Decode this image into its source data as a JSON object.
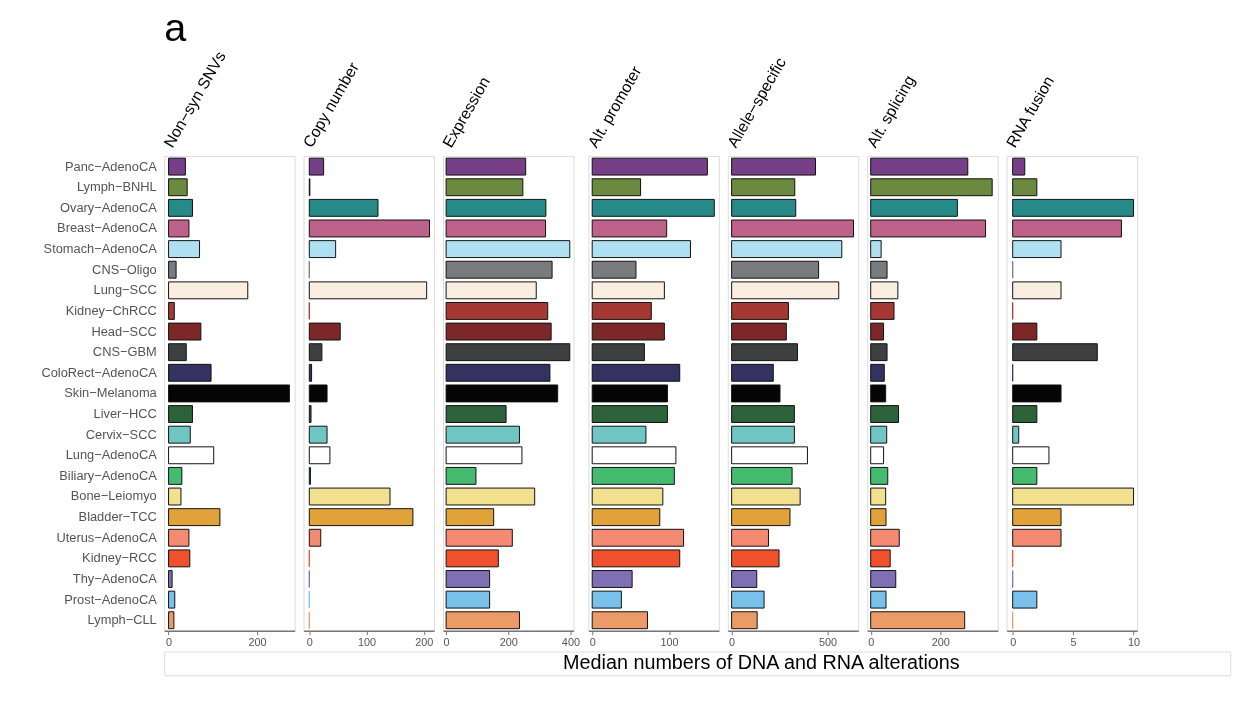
{
  "chart_data": [
    {
      "type": "bar",
      "orientation": "horizontal",
      "title": "Non−syn SNVs",
      "annotations": [
        "a"
      ],
      "categories": [
        "Panc−AdenoCA",
        "Lymph−BNHL",
        "Ovary−AdenoCA",
        "Breast−AdenoCA",
        "Stomach−AdenoCA",
        "CNS−Oligo",
        "Lung−SCC",
        "Kidney−ChRCC",
        "Head−SCC",
        "CNS−GBM",
        "ColoRect−AdenoCA",
        "Skin−Melanoma",
        "Liver−HCC",
        "Cervix−SCC",
        "Lung−AdenoCA",
        "Biliary−AdenoCA",
        "Bone−Leiomyo",
        "Bladder−TCC",
        "Uterus−AdenoCA",
        "Kidney−RCC",
        "Thy−AdenoCA",
        "Prost−AdenoCA",
        "Lymph−CLL"
      ],
      "values": [
        38,
        42,
        54,
        46,
        70,
        17,
        179,
        13,
        73,
        40,
        96,
        273,
        54,
        49,
        102,
        30,
        28,
        116,
        46,
        48,
        8,
        14,
        12
      ],
      "colors": [
        "#763f87",
        "#6b8a40",
        "#268a89",
        "#be618b",
        "#afe0f2",
        "#7a7b7f",
        "#f9eedf",
        "#a43832",
        "#7d2828",
        "#3e3f41",
        "#333261",
        "#050505",
        "#2c613a",
        "#6fc6c2",
        "#ffffff",
        "#45bb70",
        "#f1e08e",
        "#e1a23a",
        "#f58a73",
        "#ef512d",
        "#7f70b6",
        "#79c1ea",
        "#ea9b67"
      ],
      "xlim": [
        -10,
        285
      ],
      "xticks": [
        0,
        200
      ]
    },
    {
      "type": "bar",
      "orientation": "horizontal",
      "title": "Copy number",
      "tick_labels": "x",
      "categories": [
        null,
        null,
        null,
        null,
        null,
        null,
        null,
        null,
        null,
        null,
        null,
        null,
        null,
        null,
        null,
        null,
        null,
        null,
        null,
        null,
        null,
        null,
        null
      ],
      "values": [
        25,
        1,
        120,
        210,
        46,
        0,
        205,
        0,
        54,
        22,
        4,
        31,
        3,
        31,
        36,
        2,
        141,
        181,
        20,
        0,
        0,
        0,
        0
      ],
      "colors": [
        "#763f87",
        "#6b8a40",
        "#268a89",
        "#be618b",
        "#afe0f2",
        "#7a7b7f",
        "#f9eedf",
        "#a43832",
        "#7d2828",
        "#3e3f41",
        "#333261",
        "#050505",
        "#2c613a",
        "#6fc6c2",
        "#ffffff",
        "#45bb70",
        "#f1e08e",
        "#e1a23a",
        "#f58a73",
        "#ef512d",
        "#7f70b6",
        "#79c1ea",
        "#ea9b67"
      ],
      "xlim": [
        -10,
        218
      ],
      "xticks": [
        0,
        100,
        200
      ]
    },
    {
      "type": "bar",
      "orientation": "horizontal",
      "title": "Expression",
      "tick_labels": "x",
      "categories": [
        null,
        null,
        null,
        null,
        null,
        null,
        null,
        null,
        null,
        null,
        null,
        null,
        null,
        null,
        null,
        null,
        null,
        null,
        null,
        null,
        null,
        null,
        null
      ],
      "values": [
        256,
        247,
        321,
        320,
        398,
        341,
        290,
        327,
        338,
        398,
        334,
        359,
        193,
        236,
        244,
        96,
        285,
        153,
        213,
        168,
        140,
        140,
        236
      ],
      "colors": [
        "#763f87",
        "#6b8a40",
        "#268a89",
        "#be618b",
        "#afe0f2",
        "#7a7b7f",
        "#f9eedf",
        "#a43832",
        "#7d2828",
        "#3e3f41",
        "#333261",
        "#050505",
        "#2c613a",
        "#6fc6c2",
        "#ffffff",
        "#45bb70",
        "#f1e08e",
        "#e1a23a",
        "#f58a73",
        "#ef512d",
        "#7f70b6",
        "#79c1ea",
        "#ea9b67"
      ],
      "xlim": [
        -10,
        410
      ],
      "xticks": [
        0,
        200,
        400
      ]
    },
    {
      "type": "bar",
      "orientation": "horizontal",
      "title": "Alt. promoter",
      "tick_labels": "x",
      "xlabel": "Median numbers of DNA and RNA alterations",
      "categories": [
        null,
        null,
        null,
        null,
        null,
        null,
        null,
        null,
        null,
        null,
        null,
        null,
        null,
        null,
        null,
        null,
        null,
        null,
        null,
        null,
        null,
        null,
        null
      ],
      "values": [
        150,
        63,
        159,
        97,
        128,
        57,
        94,
        77,
        94,
        68,
        114,
        98,
        98,
        70,
        109,
        107,
        92,
        88,
        119,
        114,
        52,
        38,
        72
      ],
      "colors": [
        "#763f87",
        "#6b8a40",
        "#268a89",
        "#be618b",
        "#afe0f2",
        "#7a7b7f",
        "#f9eedf",
        "#a43832",
        "#7d2828",
        "#3e3f41",
        "#333261",
        "#050505",
        "#2c613a",
        "#6fc6c2",
        "#ffffff",
        "#45bb70",
        "#f1e08e",
        "#e1a23a",
        "#f58a73",
        "#ef512d",
        "#7f70b6",
        "#79c1ea",
        "#ea9b67"
      ],
      "xlim": [
        -5,
        165
      ],
      "xticks": [
        0,
        100
      ]
    },
    {
      "type": "bar",
      "orientation": "horizontal",
      "title": "Allele−specific",
      "tick_labels": "x",
      "categories": [
        null,
        null,
        null,
        null,
        null,
        null,
        null,
        null,
        null,
        null,
        null,
        null,
        null,
        null,
        null,
        null,
        null,
        null,
        null,
        null,
        null,
        null,
        null
      ],
      "values": [
        437,
        329,
        334,
        635,
        574,
        453,
        558,
        296,
        285,
        343,
        217,
        252,
        327,
        327,
        395,
        315,
        357,
        304,
        192,
        247,
        131,
        169,
        133
      ],
      "colors": [
        "#763f87",
        "#6b8a40",
        "#268a89",
        "#be618b",
        "#afe0f2",
        "#7a7b7f",
        "#f9eedf",
        "#a43832",
        "#7d2828",
        "#3e3f41",
        "#333261",
        "#050505",
        "#2c613a",
        "#6fc6c2",
        "#ffffff",
        "#45bb70",
        "#f1e08e",
        "#e1a23a",
        "#f58a73",
        "#ef512d",
        "#7f70b6",
        "#79c1ea",
        "#ea9b67"
      ],
      "xlim": [
        -20,
        660
      ],
      "xticks": [
        0,
        500
      ]
    },
    {
      "type": "bar",
      "orientation": "horizontal",
      "title": "Alt. splicing",
      "tick_labels": "x",
      "categories": [
        null,
        null,
        null,
        null,
        null,
        null,
        null,
        null,
        null,
        null,
        null,
        null,
        null,
        null,
        null,
        null,
        null,
        null,
        null,
        null,
        null,
        null,
        null
      ],
      "values": [
        279,
        349,
        249,
        330,
        30,
        47,
        78,
        67,
        37,
        47,
        39,
        43,
        80,
        46,
        37,
        49,
        43,
        44,
        82,
        56,
        72,
        44,
        270
      ],
      "colors": [
        "#763f87",
        "#6b8a40",
        "#268a89",
        "#be618b",
        "#afe0f2",
        "#7a7b7f",
        "#f9eedf",
        "#a43832",
        "#7d2828",
        "#3e3f41",
        "#333261",
        "#050505",
        "#2c613a",
        "#6fc6c2",
        "#ffffff",
        "#45bb70",
        "#f1e08e",
        "#e1a23a",
        "#f58a73",
        "#ef512d",
        "#7f70b6",
        "#79c1ea",
        "#ea9b67"
      ],
      "xlim": [
        -10,
        365
      ],
      "xticks": [
        0,
        200
      ]
    },
    {
      "type": "bar",
      "orientation": "horizontal",
      "title": "RNA fusion",
      "tick_labels": "x",
      "categories": [
        null,
        null,
        null,
        null,
        null,
        null,
        null,
        null,
        null,
        null,
        null,
        null,
        null,
        null,
        null,
        null,
        null,
        null,
        null,
        null,
        null,
        null,
        null
      ],
      "values": [
        1,
        2,
        10,
        9,
        4,
        0,
        4,
        0,
        2,
        7,
        0,
        4,
        2,
        0.5,
        3,
        2,
        10,
        4,
        4,
        0,
        0,
        2,
        0
      ],
      "colors": [
        "#763f87",
        "#6b8a40",
        "#268a89",
        "#be618b",
        "#afe0f2",
        "#7a7b7f",
        "#f9eedf",
        "#a43832",
        "#7d2828",
        "#3e3f41",
        "#333261",
        "#050505",
        "#2c613a",
        "#6fc6c2",
        "#ffffff",
        "#45bb70",
        "#f1e08e",
        "#e1a23a",
        "#f58a73",
        "#ef512d",
        "#7f70b6",
        "#79c1ea",
        "#ea9b67"
      ],
      "xlim": [
        -0.5,
        10.3
      ],
      "xticks": [
        0,
        5,
        10
      ]
    }
  ]
}
